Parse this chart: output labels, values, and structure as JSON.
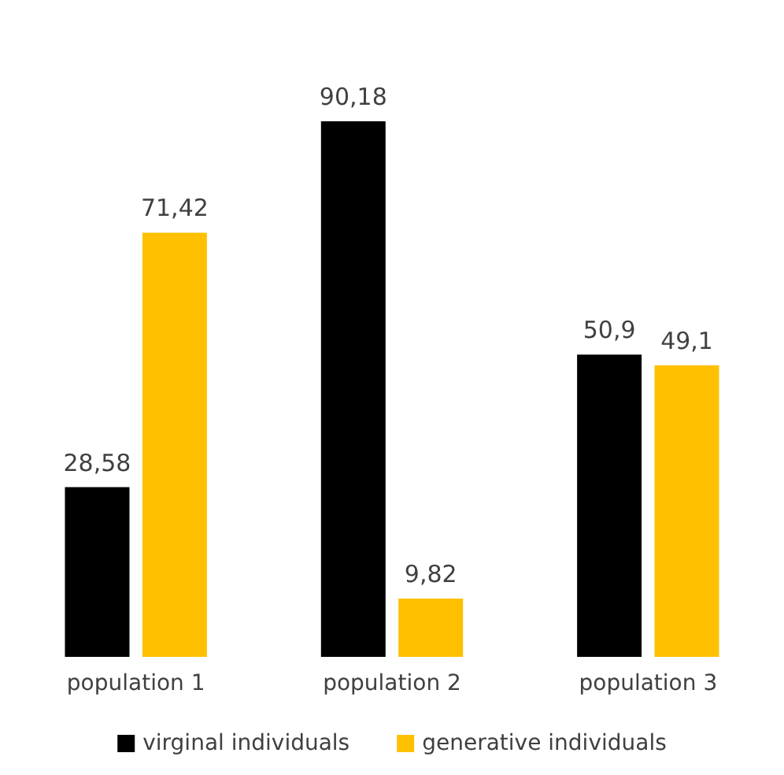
{
  "chart_data": {
    "type": "bar",
    "categories": [
      "population 1",
      "population 2",
      "population 3"
    ],
    "series": [
      {
        "name": "virginal individuals",
        "color": "#000000",
        "values": [
          28.58,
          90.18,
          50.9
        ],
        "value_labels": [
          "28,58",
          "90,18",
          "50,9"
        ]
      },
      {
        "name": "generative individuals",
        "color": "#ffc000",
        "values": [
          71.42,
          9.82,
          49.1
        ],
        "value_labels": [
          "71,42",
          "9,82",
          "49,1"
        ]
      }
    ],
    "legend": "bottom",
    "tick_labels": "x"
  }
}
